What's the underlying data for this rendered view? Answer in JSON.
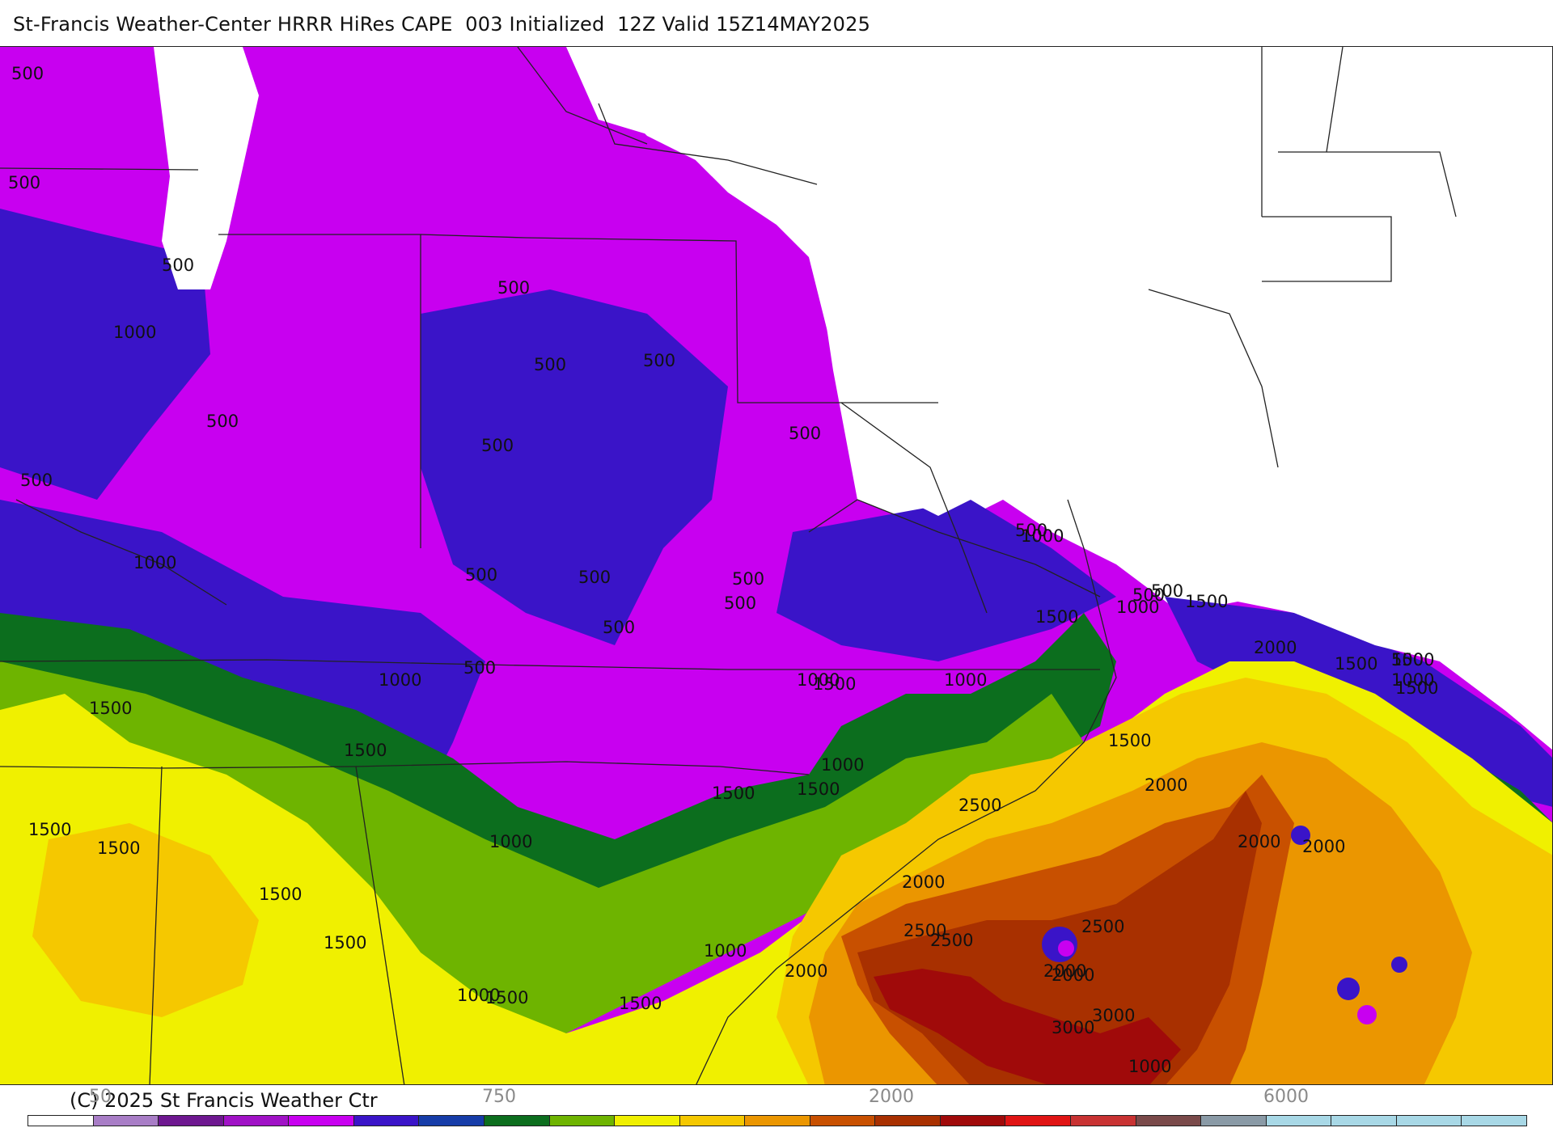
{
  "title": "St-Francis Weather-Center HRRR HiRes CAPE  003 Initialized  12Z Valid 15Z14MAY2025",
  "copyright": "(C) 2025 St Francis Weather Ctr",
  "colors": {
    "none": "#ffffff",
    "c100": "#a87dc6",
    "c250": "#6e1790",
    "c500": "#a012c6",
    "c600": "#c800f0",
    "c750": "#3a14c8",
    "c1000": "#163ca8",
    "c1250": "#0c6e1e",
    "c1500": "#6eb400",
    "c1750": "#f0f000",
    "c2000": "#f5c800",
    "c2250": "#eb9600",
    "c2500": "#c85000",
    "c2750": "#a83000",
    "c3000": "#a00a0a",
    "c4000": "#e01414",
    "c5000": "#c83232",
    "c6000": "#7a4a4a",
    "c7000": "#8a9aa6",
    "c8000": "#a8d8e6",
    "state_lines": "#222222"
  },
  "legend": {
    "visible_ticks": [
      "50",
      "750",
      "2000",
      "6000"
    ],
    "swatches": [
      "#ffffff",
      "#a87dc6",
      "#6e1790",
      "#a012c6",
      "#c800f0",
      "#3a14c8",
      "#163ca8",
      "#0c6e1e",
      "#6eb400",
      "#f0f000",
      "#f5c800",
      "#eb9600",
      "#c85000",
      "#a83000",
      "#a00a0a",
      "#e01414",
      "#c83232",
      "#7a4a4a",
      "#8a9aa6",
      "#a8d8e6",
      "#a8d8e6",
      "#a8d8e6",
      "#a8d8e6"
    ]
  },
  "contour_labels": [
    "500",
    "500",
    "500",
    "1000",
    "500",
    "500",
    "500",
    "500",
    "500",
    "500",
    "500",
    "1000",
    "500",
    "500",
    "500",
    "500",
    "500",
    "500",
    "500",
    "500",
    "1000",
    "1000",
    "1500",
    "1000",
    "1500",
    "1000",
    "1500",
    "1500",
    "1000",
    "1500",
    "1500",
    "1500",
    "1000",
    "1500",
    "1500",
    "1500",
    "1000",
    "1500",
    "1500",
    "1000",
    "1500",
    "1500",
    "1000",
    "1000",
    "1500",
    "2000",
    "2000",
    "2500",
    "2000",
    "2000",
    "2500",
    "2500",
    "3000",
    "2000",
    "2000",
    "2500",
    "3000",
    "1000",
    "2000",
    "500",
    "1500",
    "2000",
    "1000",
    "500",
    "1500"
  ]
}
